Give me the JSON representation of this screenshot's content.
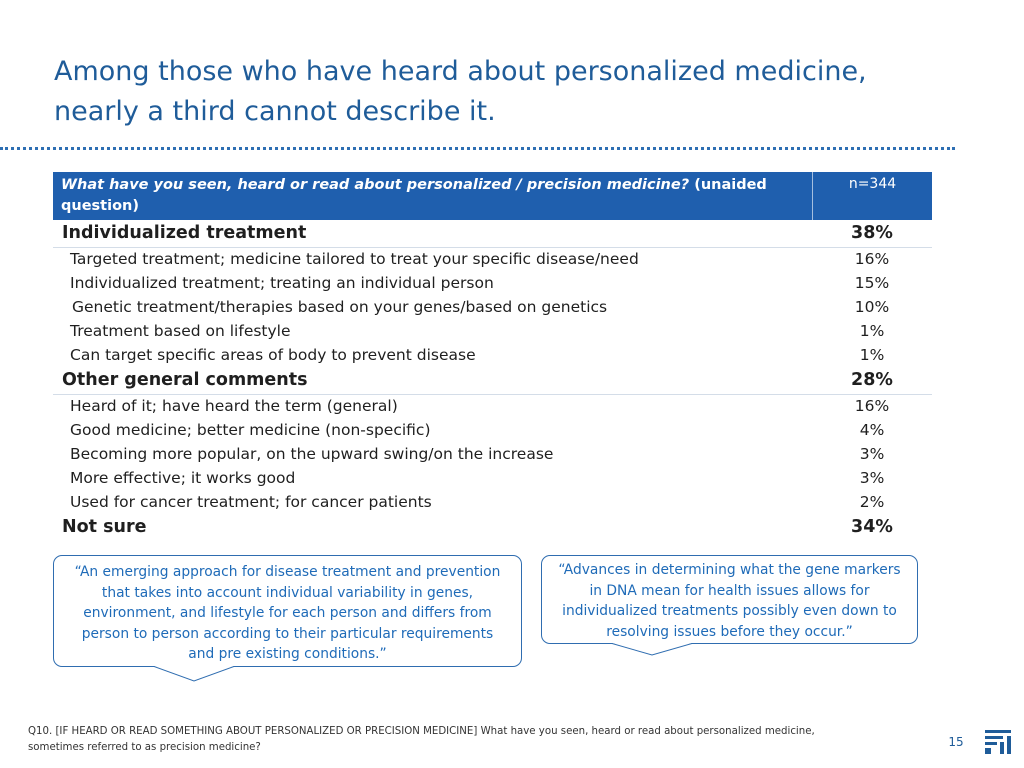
{
  "title_line1": "Among those who have heard about personalized medicine,",
  "title_line2": "nearly a third cannot describe it.",
  "table": {
    "question_italic": "What have you seen, heard or read about personalized / precision medicine?",
    "question_suffix": " (unaided question)",
    "n_label": "n=344",
    "categories": [
      {
        "label": "Individualized treatment",
        "value": "38%",
        "items": [
          {
            "label": "Targeted treatment; medicine tailored to treat your specific disease/need",
            "value": "16%"
          },
          {
            "label": "Individualized treatment; treating an individual person",
            "value": "15%"
          },
          {
            "label": "Genetic treatment/therapies based on your genes/based on genetics",
            "value": "10%"
          },
          {
            "label": "Treatment based on lifestyle",
            "value": "1%"
          },
          {
            "label": "Can target specific areas of body to prevent disease",
            "value": "1%"
          }
        ]
      },
      {
        "label": "Other general comments",
        "value": "28%",
        "items": [
          {
            "label": "Heard of it; have heard the term (general)",
            "value": "16%"
          },
          {
            "label": "Good medicine; better medicine (non-specific)",
            "value": "4%"
          },
          {
            "label": "Becoming more popular, on the upward swing/on the increase",
            "value": "3%"
          },
          {
            "label": "More effective; it works good",
            "value": "3%"
          },
          {
            "label": "Used for cancer treatment; for cancer patients",
            "value": "2%"
          }
        ]
      },
      {
        "label": "Not sure",
        "value": "34%",
        "items": []
      }
    ]
  },
  "quotes": {
    "left": [
      "“An emerging approach for disease treatment and prevention",
      "that takes into account individual variability in genes,",
      "environment, and lifestyle for each person and differs from",
      "person to person according to their particular requirements",
      "and pre existing conditions.”"
    ],
    "right": [
      "“Advances in determining what the gene markers",
      "in DNA mean for health issues allows for",
      "individualized treatments possibly even down to",
      "resolving issues before they occur.”"
    ]
  },
  "footnote_line1": "Q10. [IF HEARD OR READ SOMETHING ABOUT PERSONALIZED OR PRECISION MEDICINE] What have you seen, heard or read about personalized medicine,",
  "footnote_line2": "sometimes referred to as precision medicine?",
  "page_number": "15",
  "colors": {
    "accent": "#1f5fae",
    "title": "#1f5c99",
    "quote_text": "#1f6bb8"
  }
}
